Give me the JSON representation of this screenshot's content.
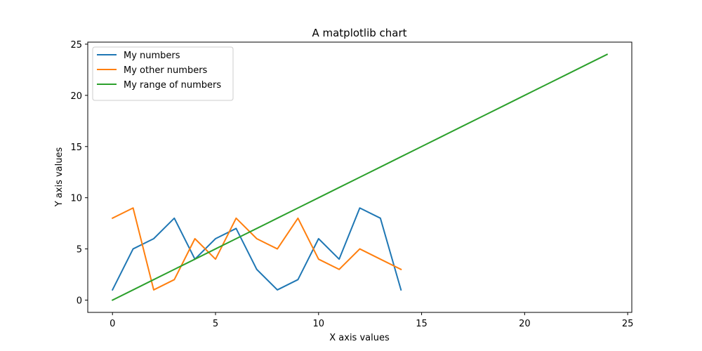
{
  "chart_data": {
    "type": "line",
    "title": "A matplotlib chart",
    "xlabel": "X axis values",
    "ylabel": "Y axis values",
    "xlim": [
      -1.2,
      25.2
    ],
    "ylim": [
      -1.2,
      25.2
    ],
    "xticks": [
      0,
      5,
      10,
      15,
      20,
      25
    ],
    "yticks": [
      0,
      5,
      10,
      15,
      20,
      25
    ],
    "grid": false,
    "legend_position": "upper-left",
    "series": [
      {
        "name": "My numbers",
        "color": "#1f77b4",
        "x": [
          0,
          1,
          2,
          3,
          4,
          5,
          6,
          7,
          8,
          9,
          10,
          11,
          12,
          13,
          14
        ],
        "y": [
          1,
          5,
          6,
          8,
          4,
          6,
          7,
          3,
          1,
          2,
          6,
          4,
          9,
          8,
          1
        ]
      },
      {
        "name": "My other numbers",
        "color": "#ff7f0e",
        "x": [
          0,
          1,
          2,
          3,
          4,
          5,
          6,
          7,
          8,
          9,
          10,
          11,
          12,
          13,
          14
        ],
        "y": [
          8,
          9,
          1,
          2,
          6,
          4,
          8,
          6,
          5,
          8,
          4,
          3,
          5,
          4,
          3
        ]
      },
      {
        "name": "My range of numbers",
        "color": "#2ca02c",
        "x": [
          0,
          1,
          2,
          3,
          4,
          5,
          6,
          7,
          8,
          9,
          10,
          11,
          12,
          13,
          14,
          15,
          16,
          17,
          18,
          19,
          20,
          21,
          22,
          23,
          24
        ],
        "y": [
          0,
          1,
          2,
          3,
          4,
          5,
          6,
          7,
          8,
          9,
          10,
          11,
          12,
          13,
          14,
          15,
          16,
          17,
          18,
          19,
          20,
          21,
          22,
          23,
          24
        ]
      }
    ]
  }
}
